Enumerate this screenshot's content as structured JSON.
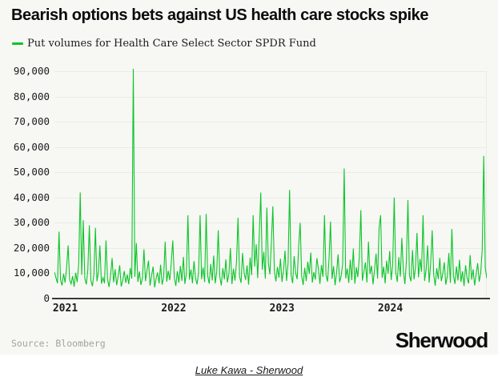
{
  "header": {
    "title": "Bearish options bets against US health care stocks spike",
    "legend_label": "Put volumes for Health Care Select Sector SPDR Fund"
  },
  "footer": {
    "source": "Source: Bloomberg",
    "brand": "Sherwood"
  },
  "caption": {
    "byline": "Luke Kawa - Sherwood"
  },
  "colors": {
    "line_green": "#0bc528",
    "card_bg": "#f7f7f4",
    "grid": "#eaeae7",
    "axis": "#3a3a38",
    "tick_text": "#1c1c1c",
    "source_text": "#a3a29e"
  },
  "chart_data": {
    "type": "line",
    "title": "Put volumes for Health Care Select Sector SPDR Fund",
    "xlabel": "",
    "ylabel": "",
    "legend_position": "top-left",
    "grid": "horizontal-only",
    "x_ticks": [
      2021,
      2022,
      2023,
      2024
    ],
    "x_tick_labels": [
      "2021",
      "2022",
      "2023",
      "2024"
    ],
    "y_ticks": [
      0,
      10000,
      20000,
      30000,
      40000,
      50000,
      60000,
      70000,
      80000,
      90000
    ],
    "y_tick_labels": [
      "0",
      "10,000",
      "20,000",
      "30,000",
      "40,000",
      "50,000",
      "60,000",
      "70,000",
      "80,000",
      "90,000"
    ],
    "ylim": [
      0,
      92500
    ],
    "x_start_year": 2020.9,
    "x_step_years": 0.014,
    "values_scale": 1000,
    "values_unit": "put option contracts per day (values listed in thousands)",
    "key_peaks": [
      {
        "date_approx": "2021-02",
        "value": 42000
      },
      {
        "date_approx": "2021-08",
        "value": 91000
      },
      {
        "date_approx": "2022-10",
        "value": 42000
      },
      {
        "date_approx": "2023-02",
        "value": 43000
      },
      {
        "date_approx": "2023-06",
        "value": 51500
      },
      {
        "date_approx": "2024-01",
        "value": 40000
      },
      {
        "date_approx": "2024-12",
        "value": 56500
      }
    ],
    "values": [
      10.5,
      8.2,
      6.1,
      26.5,
      7.4,
      5.2,
      9.8,
      6.3,
      12.4,
      21.0,
      7.6,
      5.8,
      8.9,
      4.7,
      10.2,
      6.5,
      13.8,
      42.0,
      9.4,
      31.0,
      8.1,
      5.6,
      11.3,
      29.0,
      7.2,
      4.9,
      9.6,
      28.0,
      6.8,
      10.4,
      21.0,
      5.9,
      8.3,
      6.1,
      23.0,
      7.7,
      4.6,
      9.2,
      16.0,
      6.4,
      11.6,
      5.3,
      8.8,
      13.2,
      4.8,
      7.1,
      10.9,
      6.2,
      9.5,
      5.7,
      12.1,
      7.9,
      91.0,
      8.6,
      22.0,
      6.6,
      10.7,
      5.4,
      8.0,
      19.5,
      6.9,
      11.2,
      15.0,
      5.1,
      9.1,
      12.6,
      4.4,
      7.8,
      10.3,
      6.0,
      13.4,
      5.5,
      8.5,
      22.5,
      6.7,
      11.0,
      7.3,
      14.2,
      23.0,
      8.4,
      5.0,
      10.8,
      6.3,
      12.9,
      7.0,
      16.5,
      5.8,
      9.9,
      33.0,
      7.5,
      11.5,
      6.1,
      14.8,
      8.2,
      5.6,
      10.1,
      33.0,
      7.7,
      12.3,
      6.5,
      33.5,
      9.0,
      5.9,
      13.7,
      7.2,
      17.0,
      6.0,
      10.6,
      27.0,
      8.8,
      5.2,
      12.0,
      7.6,
      15.5,
      6.4,
      9.7,
      20.0,
      5.7,
      11.8,
      7.1,
      14.5,
      32.0,
      8.7,
      6.2,
      18.0,
      10.4,
      7.4,
      13.1,
      5.5,
      16.2,
      9.3,
      33.0,
      12.7,
      21.5,
      8.1,
      25.0,
      42.0,
      11.4,
      18.5,
      7.9,
      36.0,
      14.0,
      9.6,
      22.0,
      36.5,
      10.9,
      6.8,
      12.5,
      8.3,
      15.8,
      6.6,
      11.1,
      19.0,
      7.0,
      13.9,
      43.0,
      9.2,
      6.1,
      16.8,
      10.0,
      7.7,
      21.0,
      30.0,
      8.9,
      5.4,
      12.2,
      6.9,
      14.6,
      9.8,
      18.2,
      6.3,
      10.5,
      7.5,
      16.0,
      11.7,
      5.8,
      13.3,
      8.6,
      33.0,
      9.4,
      6.7,
      15.2,
      30.5,
      7.8,
      12.8,
      5.3,
      10.2,
      17.5,
      6.5,
      9.0,
      13.6,
      51.5,
      8.0,
      11.9,
      6.2,
      15.4,
      7.3,
      19.8,
      5.9,
      12.4,
      8.5,
      16.6,
      35.0,
      7.1,
      10.7,
      14.3,
      6.4,
      22.5,
      9.7,
      13.0,
      5.6,
      11.4,
      17.8,
      7.9,
      28.0,
      33.0,
      8.2,
      12.6,
      6.0,
      15.0,
      9.9,
      18.8,
      7.4,
      13.5,
      40.0,
      10.3,
      6.6,
      16.4,
      8.7,
      24.0,
      11.0,
      5.7,
      14.9,
      39.0,
      9.1,
      6.8,
      19.2,
      7.6,
      12.1,
      26.0,
      8.4,
      15.7,
      10.6,
      33.0,
      7.0,
      11.3,
      21.0,
      6.3,
      13.8,
      27.0,
      9.5,
      5.1,
      12.0,
      7.7,
      16.1,
      6.9,
      10.0,
      14.4,
      5.5,
      8.9,
      18.0,
      6.2,
      27.5,
      9.3,
      5.8,
      12.7,
      7.2,
      15.3,
      6.6,
      10.8,
      4.9,
      13.2,
      8.1,
      6.0,
      17.2,
      7.5,
      11.6,
      5.2,
      9.6,
      14.0,
      6.7,
      10.1,
      19.5,
      56.5,
      12.3,
      8.0
    ]
  }
}
